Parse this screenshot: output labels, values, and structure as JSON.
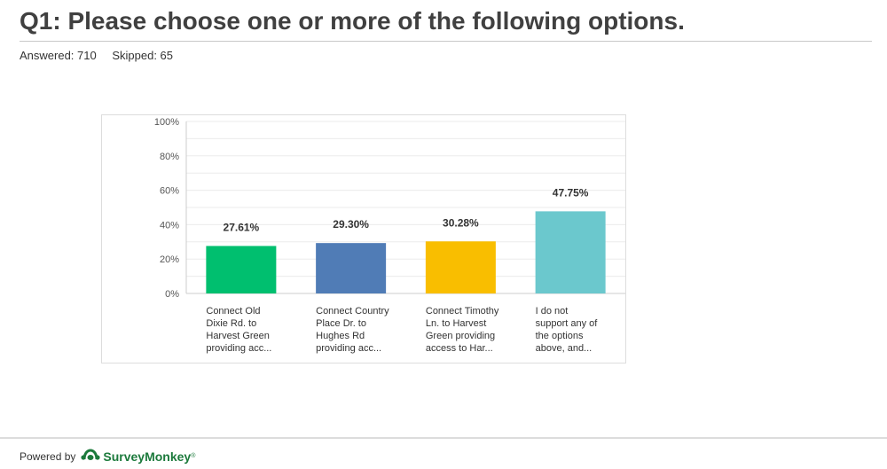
{
  "question": {
    "title": "Q1: Please choose one or more of the following options."
  },
  "stats": {
    "answered": "Answered: 710",
    "skipped": "Skipped: 65"
  },
  "chart_data": {
    "type": "bar",
    "categories": [
      [
        "Connect Old",
        "Dixie Rd. to",
        "Harvest Green",
        "providing acc..."
      ],
      [
        "Connect Country",
        "Place Dr. to",
        "Hughes Rd",
        "providing acc..."
      ],
      [
        "Connect Timothy",
        "Ln. to Harvest",
        "Green providing",
        "access to Har..."
      ],
      [
        "I do not",
        "support any of",
        "the options",
        "above, and..."
      ]
    ],
    "values": [
      27.61,
      29.3,
      30.28,
      47.75
    ],
    "data_labels": [
      "27.61%",
      "29.30%",
      "30.28%",
      "47.75%"
    ],
    "colors": [
      "#00bf6f",
      "#507cb6",
      "#f9be00",
      "#6bc8cd"
    ],
    "ylim": [
      0,
      100
    ],
    "yticks": [
      "0%",
      "20%",
      "40%",
      "60%",
      "80%",
      "100%"
    ],
    "grid": true,
    "title": "",
    "xlabel": "",
    "ylabel": ""
  },
  "footer": {
    "powered_by": "Powered by",
    "brand": "SurveyMonkey",
    "trademark": "®",
    "logo_color": "#1c7a3c"
  }
}
